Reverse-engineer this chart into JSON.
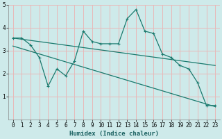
{
  "title": "",
  "xlabel": "Humidex (Indice chaleur)",
  "ylabel": "",
  "bg_color": "#ceeaea",
  "line_color": "#1a7a6e",
  "grid_color": "#e8b8b8",
  "xlim": [
    -0.5,
    23.5
  ],
  "ylim": [
    0,
    5
  ],
  "yticks": [
    1,
    2,
    3,
    4,
    5
  ],
  "xticks": [
    0,
    1,
    2,
    3,
    4,
    5,
    6,
    7,
    8,
    9,
    10,
    11,
    12,
    13,
    14,
    15,
    16,
    17,
    18,
    19,
    20,
    21,
    22,
    23
  ],
  "line1_x": [
    0,
    1,
    2,
    3,
    4,
    5,
    6,
    7,
    8,
    9,
    10,
    11,
    12,
    13,
    14,
    15,
    16,
    17,
    18,
    19,
    20,
    21,
    22,
    23
  ],
  "line1_y": [
    3.55,
    3.55,
    3.25,
    2.7,
    1.45,
    2.2,
    1.9,
    2.55,
    3.85,
    3.4,
    3.3,
    3.3,
    3.3,
    4.4,
    4.8,
    3.85,
    3.75,
    2.85,
    2.7,
    2.35,
    2.2,
    1.6,
    0.6,
    0.6
  ],
  "line2_x": [
    0,
    23
  ],
  "line2_y": [
    3.55,
    2.35
  ],
  "line3_x": [
    0,
    23
  ],
  "line3_y": [
    3.2,
    0.55
  ],
  "xlabel_fontsize": 6.5,
  "tick_fontsize": 5.5
}
